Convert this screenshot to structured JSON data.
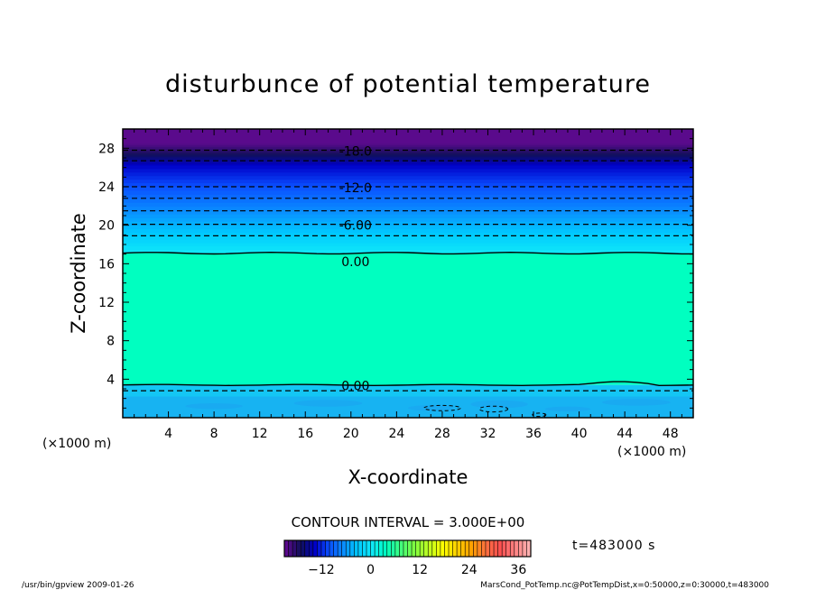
{
  "chart_data": {
    "type": "contour",
    "title": "disturbunce of potential temperature",
    "xlabel": "X-coordinate",
    "ylabel": "Z-coordinate",
    "x_unit": "(×1000 m)",
    "x_ticks": [
      4,
      8,
      12,
      16,
      20,
      24,
      28,
      32,
      36,
      40,
      44,
      48
    ],
    "y_ticks": [
      4,
      8,
      12,
      16,
      20,
      24,
      28
    ],
    "xlim": [
      0,
      50
    ],
    "ylim": [
      0,
      30
    ],
    "contour_interval": "CONTOUR INTERVAL = 3.000E+00",
    "time_label": "t=483000 s",
    "contour_labels": [
      {
        "text": "-18.0",
        "z": 27.8
      },
      {
        "text": "-12.0",
        "z": 24.0
      },
      {
        "text": "-6.00",
        "z": 20.1
      },
      {
        "text": "0.00",
        "z": 16.3
      },
      {
        "text": "0.00",
        "z": 3.4
      }
    ],
    "colorbar": {
      "min": -21,
      "max": 39,
      "tick_values": [
        -12,
        0,
        12,
        24,
        36
      ],
      "tick_labels": [
        "−12",
        "0",
        "12",
        "24",
        "36"
      ]
    },
    "fields": {
      "zero_band": [
        3.4,
        17.1
      ],
      "top_negative_start": 17.1,
      "bottom_negative_end": 3.4,
      "top_value_at_ceiling": -21,
      "dashed_levels": [
        2.8,
        18.9,
        20.1,
        21.5,
        22.8,
        24.0,
        26.7,
        27.8
      ]
    },
    "colors": {
      "zero": "#00ffc0",
      "purple": "#5a0a8c",
      "navy": "#10105a",
      "blue_dark": "#0000c8",
      "blue": "#0a50ff",
      "blue_light": "#0a8cff",
      "cyan": "#00c8ff",
      "cyan_light": "#10e8f8",
      "bottom_light": "#14c6f4",
      "bottom_dark": "#1aa4f0"
    }
  },
  "footer": {
    "left": "/usr/bin/gpview  2009-01-26",
    "right": "MarsCond_PotTemp.nc@PotTempDist,x=0:50000,z=0:30000,t=483000"
  }
}
